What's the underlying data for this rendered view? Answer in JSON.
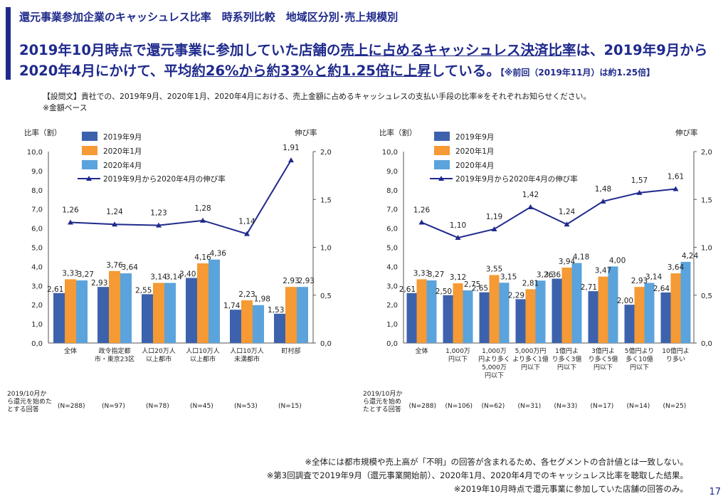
{
  "header": {
    "subtitle": "還元事業参加企業のキャッシュレス比率　時系列比較　地域区分別･売上規模別",
    "main_pre": "2019年10月時点で還元事業に参加していた店舗の",
    "main_u1": "売上に占めるキャッシュレス決済比率",
    "main_mid": "は、2019年9月から2020年4月にかけて、平均",
    "main_u2": "約26%から約33%と約1.25倍に上昇",
    "main_post": "している。",
    "main_note": "【※前回（2019年11月）は約1.25倍】"
  },
  "question": {
    "line1": "【設問文】貴社での、2019年9月、2020年1月、2020年4月における、売上金額に占めるキャッシュレスの支払い手段の比率※をそれぞれお知らせください。",
    "line2": "※金額ベース"
  },
  "colors": {
    "sep": "#3d62ad",
    "jan": "#f59a34",
    "apr": "#5ba3dc",
    "line": "#1f2a8c"
  },
  "chart_data": [
    {
      "type": "bar",
      "ylabel_left": "比率（割）",
      "ylabel_right": "伸び率",
      "ylim": [
        0,
        10
      ],
      "ylim_right": [
        0,
        2
      ],
      "yticks_left": [
        "0,0",
        "1,0",
        "2,0",
        "3,0",
        "4,0",
        "5,0",
        "6,0",
        "7,0",
        "8,0",
        "9,0",
        "10,0"
      ],
      "yticks_right": [
        "0,0",
        "0,5",
        "1,0",
        "1,5",
        "2,0"
      ],
      "categories": [
        [
          "全体"
        ],
        [
          "政令指定都",
          "市・東京23区"
        ],
        [
          "人口20万人",
          "以上都市"
        ],
        [
          "人口10万人",
          "以上都市"
        ],
        [
          "人口10万人",
          "未満都市"
        ],
        [
          "町村部"
        ]
      ],
      "series": [
        {
          "name": "2019年9月",
          "values": [
            2.61,
            2.93,
            2.55,
            3.4,
            1.74,
            1.53
          ],
          "labels": [
            "2,61",
            "2,93",
            "2,55",
            "3,40",
            "1,74",
            "1,53"
          ]
        },
        {
          "name": "2020年1月",
          "values": [
            3.33,
            3.76,
            3.14,
            4.16,
            2.23,
            2.93
          ],
          "labels": [
            "3,33",
            "3,76",
            "3,14",
            "4,16",
            "2,23",
            "2,93"
          ]
        },
        {
          "name": "2020年4月",
          "values": [
            3.27,
            3.64,
            3.14,
            4.36,
            1.98,
            2.93
          ],
          "labels": [
            "3,27",
            "3,64",
            "3,14",
            "4,36",
            "1,98",
            "2,93"
          ]
        }
      ],
      "line": {
        "name": "2019年9月から2020年4月の伸び率",
        "values": [
          1.26,
          1.24,
          1.23,
          1.28,
          1.14,
          1.91
        ],
        "labels": [
          "1,26",
          "1,24",
          "1,23",
          "1,28",
          "1,14",
          "1,91"
        ]
      },
      "n_title": [
        "2019/10月か",
        "ら還元を始めた",
        "とする回答"
      ],
      "n_values": [
        "(N=288)",
        "(N=97)",
        "(N=78)",
        "(N=45)",
        "(N=53)",
        "(N=15)"
      ]
    },
    {
      "type": "bar",
      "ylabel_left": "比率（割）",
      "ylabel_right": "伸び率",
      "ylim": [
        0,
        10
      ],
      "ylim_right": [
        0,
        2
      ],
      "yticks_left": [
        "0,0",
        "1,0",
        "2,0",
        "3,0",
        "4,0",
        "5,0",
        "6,0",
        "7,0",
        "8,0",
        "9,0",
        "10,0"
      ],
      "yticks_right": [
        "0,0",
        "0,5",
        "1,0",
        "1,5",
        "2,0"
      ],
      "categories": [
        [
          "全体"
        ],
        [
          "1,000万",
          "円以下"
        ],
        [
          "1,000万",
          "円より多く",
          "5,000万",
          "円以下"
        ],
        [
          "5,000万円",
          "より多く1億",
          "円以下"
        ],
        [
          "1億円よ",
          "り多く3億",
          "円以下"
        ],
        [
          "3億円よ",
          "り多く5億",
          "円以下"
        ],
        [
          "5億円より",
          "多く10億",
          "円以下"
        ],
        [
          "10億円よ",
          "り多い"
        ]
      ],
      "series": [
        {
          "name": "2019年9月",
          "values": [
            2.61,
            2.5,
            2.65,
            2.29,
            3.36,
            2.71,
            2.0,
            2.64
          ],
          "labels": [
            "2,61",
            "2,50",
            "2,65",
            "2,29",
            "3,36",
            "2,71",
            "2,00",
            "2,64"
          ]
        },
        {
          "name": "2020年1月",
          "values": [
            3.33,
            3.12,
            3.55,
            2.81,
            3.94,
            3.47,
            2.93,
            3.64
          ],
          "labels": [
            "3,33",
            "3,12",
            "3,55",
            "2,81",
            "3,94",
            "3,47",
            "2,93",
            "3,64"
          ]
        },
        {
          "name": "2020年4月",
          "values": [
            3.27,
            2.75,
            3.15,
            3.26,
            4.18,
            4.0,
            3.14,
            4.24
          ],
          "labels": [
            "3,27",
            "2,75",
            "3,15",
            "3,26",
            "4,18",
            "4,00",
            "3,14",
            "4,24"
          ]
        }
      ],
      "line": {
        "name": "2019年9月から2020年4月の伸び率",
        "values": [
          1.26,
          1.1,
          1.19,
          1.42,
          1.24,
          1.48,
          1.57,
          1.61
        ],
        "labels": [
          "1,26",
          "1,10",
          "1,19",
          "1,42",
          "1,24",
          "1,48",
          "1,57",
          "1,61"
        ]
      },
      "n_title": [
        "2019/10月か",
        "ら還元を始め",
        "たとする回答"
      ],
      "n_values": [
        "(N=288)",
        "(N=106)",
        "(N=62)",
        "(N=31)",
        "(N=33)",
        "(N=17)",
        "(N=14)",
        "(N=25)"
      ]
    }
  ],
  "footnotes": [
    "※全体には都市規模や売上高が「不明」の回答が含まれるため、各セグメントの合計値とは一致しない。",
    "※第3回調査で2019年9月（還元事業開始前）、2020年1月、2020年4月でのキャッシュレス比率を聴取した結果。",
    "※2019年10月時点で還元事業に参加していた店舗の回答のみ。"
  ],
  "page_number": "17"
}
